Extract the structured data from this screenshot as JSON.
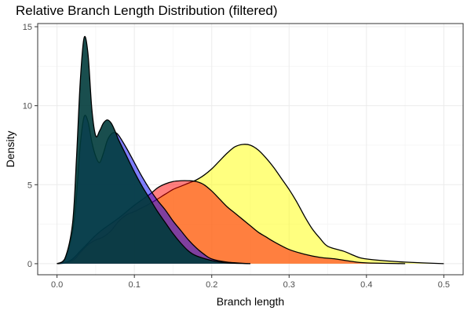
{
  "chart_data": {
    "type": "area",
    "title": "Relative Branch Length Distribution (filtered)",
    "xlabel": "Branch length",
    "ylabel": "Density",
    "xlim": [
      -0.025,
      0.525
    ],
    "ylim": [
      -0.7,
      15.2
    ],
    "x_ticks": [
      0.0,
      0.1,
      0.2,
      0.3,
      0.4,
      0.5
    ],
    "x_tick_labels": [
      "0.0",
      "0.1",
      "0.2",
      "0.3",
      "0.4",
      "0.5"
    ],
    "y_ticks": [
      0,
      5,
      10,
      15
    ],
    "y_tick_labels": [
      "0",
      "5",
      "10",
      "15"
    ],
    "grid": true,
    "series": [
      {
        "color": "#ffff00",
        "opacity": 0.5,
        "points": [
          [
            0.0,
            0
          ],
          [
            0.02,
            0.2
          ],
          [
            0.03,
            0.7
          ],
          [
            0.04,
            1.2
          ],
          [
            0.05,
            1.5
          ],
          [
            0.06,
            1.7
          ],
          [
            0.07,
            2.1
          ],
          [
            0.08,
            2.7
          ],
          [
            0.09,
            3.1
          ],
          [
            0.1,
            3.3
          ],
          [
            0.12,
            3.8
          ],
          [
            0.14,
            4.4
          ],
          [
            0.15,
            4.7
          ],
          [
            0.16,
            4.9
          ],
          [
            0.17,
            5.1
          ],
          [
            0.18,
            5.3
          ],
          [
            0.19,
            5.6
          ],
          [
            0.2,
            6.0
          ],
          [
            0.21,
            6.5
          ],
          [
            0.22,
            7.0
          ],
          [
            0.23,
            7.4
          ],
          [
            0.24,
            7.55
          ],
          [
            0.25,
            7.5
          ],
          [
            0.26,
            7.2
          ],
          [
            0.27,
            6.7
          ],
          [
            0.28,
            6.1
          ],
          [
            0.29,
            5.4
          ],
          [
            0.3,
            4.7
          ],
          [
            0.31,
            3.9
          ],
          [
            0.32,
            3.0
          ],
          [
            0.33,
            2.2
          ],
          [
            0.34,
            1.6
          ],
          [
            0.35,
            1.1
          ],
          [
            0.37,
            0.8
          ],
          [
            0.38,
            0.6
          ],
          [
            0.39,
            0.4
          ],
          [
            0.4,
            0.3
          ],
          [
            0.42,
            0.2
          ],
          [
            0.45,
            0.1
          ],
          [
            0.5,
            0.0
          ]
        ]
      },
      {
        "color": "#ff0000",
        "opacity": 0.5,
        "points": [
          [
            0.0,
            0
          ],
          [
            0.01,
            0.05
          ],
          [
            0.02,
            0.3
          ],
          [
            0.03,
            0.8
          ],
          [
            0.04,
            1.3
          ],
          [
            0.05,
            1.8
          ],
          [
            0.06,
            2.2
          ],
          [
            0.08,
            2.9
          ],
          [
            0.1,
            3.7
          ],
          [
            0.12,
            4.4
          ],
          [
            0.13,
            4.8
          ],
          [
            0.14,
            5.05
          ],
          [
            0.15,
            5.2
          ],
          [
            0.16,
            5.25
          ],
          [
            0.17,
            5.25
          ],
          [
            0.18,
            5.2
          ],
          [
            0.19,
            5.0
          ],
          [
            0.2,
            4.6
          ],
          [
            0.21,
            4.1
          ],
          [
            0.22,
            3.6
          ],
          [
            0.23,
            3.2
          ],
          [
            0.24,
            2.8
          ],
          [
            0.25,
            2.4
          ],
          [
            0.26,
            2.0
          ],
          [
            0.27,
            1.7
          ],
          [
            0.28,
            1.4
          ],
          [
            0.3,
            0.9
          ],
          [
            0.32,
            0.6
          ],
          [
            0.34,
            0.4
          ],
          [
            0.36,
            0.3
          ],
          [
            0.38,
            0.15
          ],
          [
            0.4,
            0.05
          ],
          [
            0.45,
            0.0
          ]
        ]
      },
      {
        "color": "#0000ff",
        "opacity": 0.5,
        "points": [
          [
            0.0,
            0
          ],
          [
            0.01,
            0.3
          ],
          [
            0.02,
            2.0
          ],
          [
            0.025,
            4.2
          ],
          [
            0.03,
            7.5
          ],
          [
            0.035,
            9.3
          ],
          [
            0.04,
            9.0
          ],
          [
            0.045,
            7.7
          ],
          [
            0.05,
            6.8
          ],
          [
            0.055,
            6.4
          ],
          [
            0.06,
            7.0
          ],
          [
            0.065,
            7.8
          ],
          [
            0.07,
            8.2
          ],
          [
            0.075,
            8.3
          ],
          [
            0.08,
            8.1
          ],
          [
            0.09,
            7.3
          ],
          [
            0.1,
            6.4
          ],
          [
            0.11,
            5.5
          ],
          [
            0.12,
            4.7
          ],
          [
            0.13,
            4.0
          ],
          [
            0.14,
            3.4
          ],
          [
            0.15,
            2.7
          ],
          [
            0.16,
            2.1
          ],
          [
            0.17,
            1.5
          ],
          [
            0.18,
            1.0
          ],
          [
            0.19,
            0.6
          ],
          [
            0.2,
            0.3
          ],
          [
            0.22,
            0.1
          ],
          [
            0.25,
            0.0
          ]
        ]
      },
      {
        "color": "#003b3b",
        "opacity": 0.9,
        "points": [
          [
            0.0,
            0
          ],
          [
            0.01,
            0.3
          ],
          [
            0.02,
            2.5
          ],
          [
            0.025,
            6.5
          ],
          [
            0.03,
            11.5
          ],
          [
            0.035,
            14.3
          ],
          [
            0.04,
            13.3
          ],
          [
            0.045,
            9.8
          ],
          [
            0.05,
            8.1
          ],
          [
            0.055,
            8.4
          ],
          [
            0.06,
            8.9
          ],
          [
            0.065,
            9.1
          ],
          [
            0.07,
            8.9
          ],
          [
            0.075,
            8.4
          ],
          [
            0.08,
            7.8
          ],
          [
            0.09,
            6.8
          ],
          [
            0.1,
            5.8
          ],
          [
            0.11,
            4.9
          ],
          [
            0.12,
            4.1
          ],
          [
            0.13,
            3.3
          ],
          [
            0.14,
            2.6
          ],
          [
            0.15,
            1.9
          ],
          [
            0.16,
            1.3
          ],
          [
            0.17,
            0.8
          ],
          [
            0.18,
            0.5
          ],
          [
            0.2,
            0.2
          ],
          [
            0.22,
            0.05
          ],
          [
            0.25,
            0.0
          ]
        ]
      }
    ]
  }
}
